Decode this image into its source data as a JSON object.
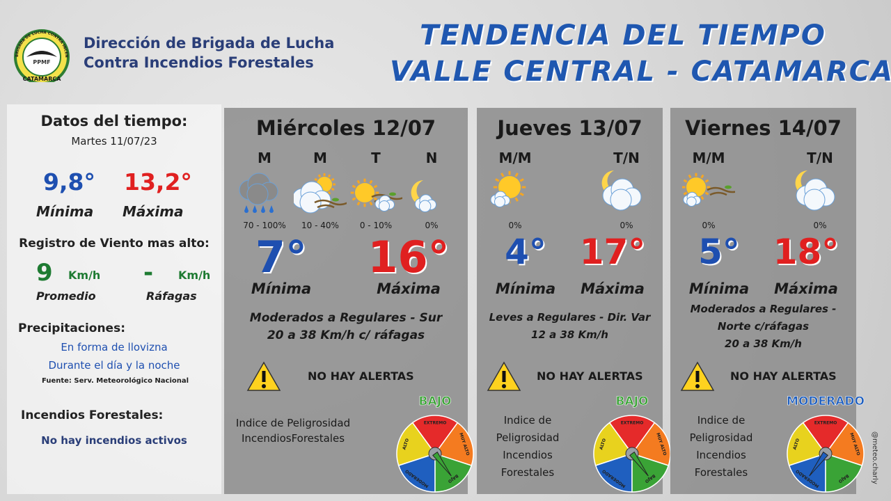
{
  "header": {
    "logo": {
      "ring": "BRIGADA DE LUCHA CONTRA INCENDIOS FORESTALES",
      "center": "PPMF",
      "bottom": "CATAMARCA"
    },
    "org": [
      "Dirección de Brigada de Lucha",
      "Contra Incendios Forestales"
    ],
    "title": [
      "TENDENCIA DEL TIEMPO",
      "VALLE CENTRAL - CATAMARCA"
    ]
  },
  "summary": {
    "heading": "Datos del tiempo:",
    "date": "Martes 11/07/23",
    "min": "9,8°",
    "min_label": "Mínima",
    "max": "13,2°",
    "max_label": "Máxima",
    "wind_heading": "Registro de Viento mas alto:",
    "wind_avg": "9",
    "wind_avg_unit": "Km/h",
    "wind_avg_label": "Promedio",
    "wind_gust": "-",
    "wind_gust_unit": "Km/h",
    "wind_gust_label": "Ráfagas",
    "precip_heading": "Precipitaciones:",
    "precip_lines": [
      "En forma de llovizna",
      "Durante el día y la noche"
    ],
    "source": "Fuente: Serv. Meteorológico Nacional",
    "fires_heading": "Incendios Forestales:",
    "fires": "No hay incendios activos"
  },
  "gauge_labels": [
    "EXTREMO",
    "MUY ALTO",
    "ALTO",
    "MODERADO",
    "BAJO"
  ],
  "forecast": [
    {
      "day": "Miércoles 12/07",
      "periods": [
        {
          "label": "M",
          "precip": "70 - 100%"
        },
        {
          "label": "M",
          "precip": "10 - 40%"
        },
        {
          "label": "T",
          "precip": "0 - 10%"
        },
        {
          "label": "N",
          "precip": "0%"
        }
      ],
      "min": "7°",
      "min_label": "Mínima",
      "max": "16°",
      "max_label": "Máxima",
      "wind": [
        "Moderados a Regulares - Sur",
        "20 a 38 Km/h c/ ráfagas"
      ],
      "alert": "NO HAY ALERTAS",
      "index_label": [
        "Indice de Peligrosidad",
        "IncendiosForestales"
      ],
      "level": "BAJO"
    },
    {
      "day": "Jueves 13/07",
      "periods": [
        {
          "label": "M/M",
          "precip": "0%"
        },
        {
          "label": "T/N",
          "precip": "0%"
        }
      ],
      "min": "4°",
      "min_label": "Mínima",
      "max": "17°",
      "max_label": "Máxima",
      "wind": [
        "Leves a Regulares - Dir. Var",
        "12 a 38 Km/h"
      ],
      "alert": "NO HAY ALERTAS",
      "index_label": [
        "Indice de",
        "Peligrosidad",
        "Incendios",
        "Forestales"
      ],
      "level": "BAJO"
    },
    {
      "day": "Viernes 14/07",
      "periods": [
        {
          "label": "M/M",
          "precip": "0%"
        },
        {
          "label": "T/N",
          "precip": "0%"
        }
      ],
      "min": "5°",
      "min_label": "Mínima",
      "max": "18°",
      "max_label": "Máxima",
      "wind": [
        "Moderados a Regulares -",
        "Norte c/ráfagas",
        "20 a 38 Km/h"
      ],
      "alert": "NO HAY ALERTAS",
      "index_label": [
        "Indice de",
        "Peligrosidad",
        "Incendios",
        "Forestales"
      ],
      "level": "MODERADO"
    }
  ],
  "credit": "@meteo.charly"
}
